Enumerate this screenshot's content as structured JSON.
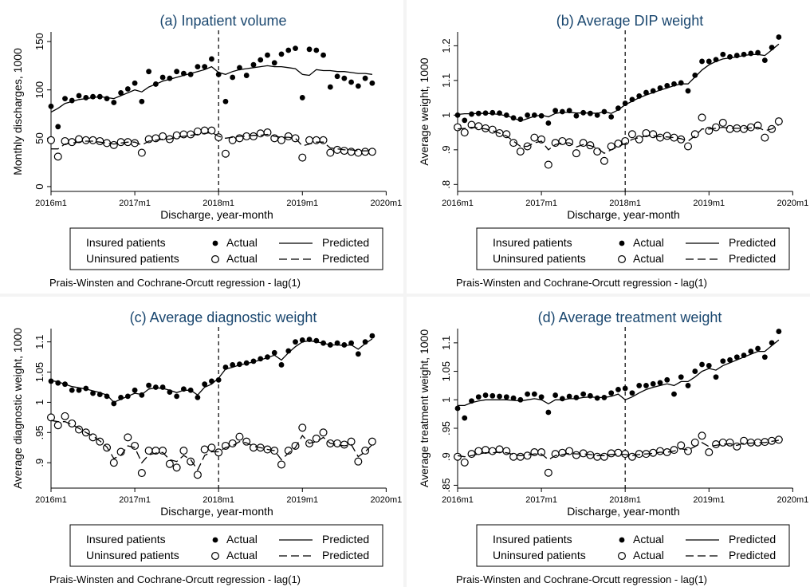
{
  "colors": {
    "background": "#ffffff",
    "panel_title": "#1a476f",
    "marks": "#000000",
    "panel_border": "#cfcfcf"
  },
  "legend": {
    "row1_label": "Insured patients",
    "row2_label": "Uninsured patients",
    "actual_label": "Actual",
    "predicted_label": "Predicted"
  },
  "note": "Prais-Winsten and Cochrane-Orcutt regression - lag(1)",
  "chart_data": [
    {
      "type": "scatter",
      "title": "(a) Inpatient volume",
      "xlabel": "Discharge, year-month",
      "ylabel": "Monthly discharges, 1000",
      "ylim": [
        -5,
        160
      ],
      "yticks": [
        0,
        50,
        100,
        150
      ],
      "ytick_labels": [
        "0",
        "50",
        "100",
        "150"
      ],
      "xlim": [
        0,
        47.5
      ],
      "xticks": [
        0,
        12,
        24,
        36,
        48
      ],
      "xtick_labels": [
        "2016m1",
        "2017m1",
        "2018m1",
        "2019m1",
        "2020m1"
      ],
      "policy_line_x": 24,
      "series": [
        {
          "name": "Insured patients Actual",
          "kind": "filled",
          "values": [
            83,
            62,
            91,
            89,
            94,
            92,
            93,
            93,
            91,
            87,
            97,
            101,
            107,
            88,
            119,
            106,
            113,
            112,
            119,
            117,
            116,
            124,
            124,
            132,
            116,
            88,
            113,
            123,
            115,
            126,
            131,
            136,
            128,
            137,
            141,
            143,
            92,
            142,
            141,
            136,
            103,
            114,
            112,
            108,
            104,
            112,
            107
          ]
        },
        {
          "name": "Insured patients Predicted",
          "kind": "solid",
          "values": [
            77,
            81,
            86,
            88,
            90,
            91,
            92,
            93,
            92,
            91,
            94,
            97,
            100,
            98,
            103,
            106,
            109,
            111,
            113,
            115,
            117,
            119,
            121,
            124,
            118,
            116,
            119,
            121,
            122,
            123,
            124,
            125,
            124,
            124,
            123,
            122,
            116,
            115,
            121,
            120,
            120,
            119,
            119,
            118,
            117,
            117,
            116
          ]
        },
        {
          "name": "Uninsured patients Actual",
          "kind": "hollow",
          "values": [
            48,
            31,
            47,
            46,
            49,
            48,
            48,
            47,
            45,
            43,
            46,
            46,
            45,
            35,
            49,
            50,
            52,
            49,
            53,
            54,
            54,
            57,
            58,
            58,
            51,
            34,
            48,
            50,
            52,
            52,
            55,
            56,
            50,
            48,
            52,
            50,
            30,
            48,
            48,
            48,
            35,
            38,
            37,
            36,
            35,
            36,
            36
          ]
        },
        {
          "name": "Uninsured patients Predicted",
          "kind": "dashed",
          "values": [
            39,
            39,
            44,
            45,
            46,
            47,
            47,
            46,
            45,
            44,
            45,
            46,
            46,
            43,
            47,
            48,
            49,
            49,
            51,
            52,
            53,
            54,
            55,
            56,
            52,
            50,
            51,
            52,
            52,
            53,
            53,
            54,
            52,
            51,
            51,
            50,
            42,
            44,
            46,
            46,
            40,
            39,
            38,
            38,
            37,
            37,
            37
          ]
        }
      ]
    },
    {
      "type": "scatter",
      "title": "(b) Average DIP weight",
      "xlabel": "Discharge, year-month",
      "ylabel": "Average weight, 1000",
      "ylim": [
        0.78,
        1.24
      ],
      "yticks": [
        0.8,
        0.9,
        1.0,
        1.1,
        1.2
      ],
      "ytick_labels": [
        ".8",
        ".9",
        "1",
        "1.1",
        "1.2"
      ],
      "xlim": [
        0,
        47.5
      ],
      "xticks": [
        0,
        12,
        24,
        36,
        48
      ],
      "xtick_labels": [
        "2016m1",
        "2017m1",
        "2018m1",
        "2019m1",
        "2020m1"
      ],
      "policy_line_x": 24,
      "series": [
        {
          "name": "Insured patients Actual",
          "kind": "filled",
          "values": [
            1.0,
            0.985,
            1.003,
            1.005,
            1.006,
            1.007,
            1.006,
            1.0,
            0.992,
            0.988,
            1.0,
            1.0,
            0.998,
            0.977,
            1.013,
            1.01,
            1.013,
            0.998,
            1.007,
            1.005,
            1.0,
            1.01,
            0.995,
            1.02,
            1.034,
            1.045,
            1.055,
            1.065,
            1.07,
            1.078,
            1.085,
            1.09,
            1.093,
            1.07,
            1.115,
            1.155,
            1.155,
            1.16,
            1.175,
            1.168,
            1.172,
            1.175,
            1.178,
            1.18,
            1.158,
            1.195,
            1.225
          ]
        },
        {
          "name": "Insured patients Predicted",
          "kind": "solid",
          "values": [
            1.002,
            1.004,
            1.004,
            1.005,
            1.005,
            1.004,
            1.002,
            0.998,
            0.992,
            0.983,
            0.99,
            0.997,
            1.0,
            0.995,
            1.005,
            1.008,
            1.008,
            1.006,
            1.006,
            1.006,
            1.005,
            1.01,
            1.005,
            1.015,
            1.03,
            1.04,
            1.05,
            1.058,
            1.065,
            1.072,
            1.078,
            1.085,
            1.09,
            1.09,
            1.11,
            1.13,
            1.145,
            1.155,
            1.162,
            1.165,
            1.168,
            1.172,
            1.175,
            1.175,
            1.172,
            1.188,
            1.205
          ]
        },
        {
          "name": "Uninsured patients Actual",
          "kind": "hollow",
          "values": [
            0.965,
            0.95,
            0.972,
            0.968,
            0.962,
            0.958,
            0.948,
            0.945,
            0.92,
            0.895,
            0.91,
            0.935,
            0.93,
            0.857,
            0.92,
            0.925,
            0.922,
            0.89,
            0.92,
            0.913,
            0.895,
            0.868,
            0.91,
            0.918,
            0.925,
            0.945,
            0.93,
            0.948,
            0.945,
            0.935,
            0.94,
            0.935,
            0.93,
            0.91,
            0.945,
            0.993,
            0.955,
            0.965,
            0.978,
            0.96,
            0.962,
            0.96,
            0.965,
            0.97,
            0.935,
            0.96,
            0.982
          ]
        },
        {
          "name": "Uninsured patients Predicted",
          "kind": "dashed",
          "values": [
            0.96,
            0.962,
            0.965,
            0.963,
            0.96,
            0.955,
            0.948,
            0.94,
            0.925,
            0.91,
            0.91,
            0.92,
            0.925,
            0.9,
            0.915,
            0.92,
            0.92,
            0.908,
            0.915,
            0.912,
            0.905,
            0.89,
            0.9,
            0.91,
            0.918,
            0.93,
            0.935,
            0.94,
            0.94,
            0.938,
            0.937,
            0.935,
            0.932,
            0.925,
            0.94,
            0.96,
            0.96,
            0.962,
            0.965,
            0.962,
            0.962,
            0.962,
            0.963,
            0.965,
            0.955,
            0.96,
            0.972
          ]
        }
      ]
    },
    {
      "type": "scatter",
      "title": "(c) Average diagnostic weight",
      "xlabel": "Discharge, year-month",
      "ylabel": "Average diagnostic weight, 1000",
      "ylim": [
        0.858,
        1.122
      ],
      "yticks": [
        0.9,
        0.95,
        1.0,
        1.05,
        1.1
      ],
      "ytick_labels": [
        ".9",
        ".95",
        "1",
        "1.05",
        "1.1"
      ],
      "xlim": [
        0,
        47.5
      ],
      "xticks": [
        0,
        12,
        24,
        36,
        48
      ],
      "xtick_labels": [
        "2016m1",
        "2017m1",
        "2018m1",
        "2019m1",
        "2020m1"
      ],
      "policy_line_x": 24,
      "series": [
        {
          "name": "Insured patients Actual",
          "kind": "filled",
          "values": [
            1.035,
            1.032,
            1.03,
            1.02,
            1.02,
            1.023,
            1.015,
            1.013,
            1.01,
            0.998,
            1.008,
            1.01,
            1.02,
            1.012,
            1.028,
            1.025,
            1.025,
            1.017,
            1.01,
            1.022,
            1.02,
            1.008,
            1.03,
            1.035,
            1.037,
            1.058,
            1.062,
            1.063,
            1.065,
            1.068,
            1.072,
            1.075,
            1.082,
            1.062,
            1.085,
            1.1,
            1.103,
            1.104,
            1.102,
            1.098,
            1.095,
            1.098,
            1.095,
            1.098,
            1.08,
            1.1,
            1.11
          ]
        },
        {
          "name": "Insured patients Predicted",
          "kind": "solid",
          "values": [
            1.036,
            1.034,
            1.03,
            1.026,
            1.024,
            1.022,
            1.019,
            1.016,
            1.012,
            1.0,
            1.005,
            1.01,
            1.015,
            1.013,
            1.022,
            1.024,
            1.023,
            1.02,
            1.016,
            1.02,
            1.02,
            1.012,
            1.025,
            1.03,
            1.04,
            1.055,
            1.058,
            1.062,
            1.064,
            1.067,
            1.07,
            1.074,
            1.078,
            1.07,
            1.082,
            1.092,
            1.1,
            1.102,
            1.1,
            1.098,
            1.095,
            1.095,
            1.094,
            1.095,
            1.088,
            1.097,
            1.105
          ]
        },
        {
          "name": "Uninsured patients Actual",
          "kind": "hollow",
          "values": [
            0.975,
            0.962,
            0.977,
            0.965,
            0.955,
            0.95,
            0.942,
            0.935,
            0.925,
            0.9,
            0.918,
            0.942,
            0.928,
            0.883,
            0.92,
            0.92,
            0.92,
            0.898,
            0.892,
            0.92,
            0.902,
            0.88,
            0.922,
            0.925,
            0.917,
            0.928,
            0.932,
            0.943,
            0.935,
            0.925,
            0.925,
            0.922,
            0.92,
            0.897,
            0.92,
            0.928,
            0.958,
            0.932,
            0.94,
            0.95,
            0.932,
            0.932,
            0.93,
            0.935,
            0.902,
            0.92,
            0.935
          ]
        },
        {
          "name": "Uninsured patients Predicted",
          "kind": "dashed",
          "values": [
            0.97,
            0.968,
            0.968,
            0.963,
            0.957,
            0.95,
            0.944,
            0.936,
            0.926,
            0.907,
            0.912,
            0.928,
            0.925,
            0.9,
            0.913,
            0.916,
            0.917,
            0.905,
            0.902,
            0.912,
            0.905,
            0.888,
            0.912,
            0.918,
            0.918,
            0.925,
            0.928,
            0.935,
            0.933,
            0.927,
            0.925,
            0.922,
            0.92,
            0.905,
            0.916,
            0.925,
            0.945,
            0.932,
            0.935,
            0.942,
            0.932,
            0.93,
            0.928,
            0.93,
            0.91,
            0.918,
            0.93
          ]
        }
      ]
    },
    {
      "type": "scatter",
      "title": "(d) Average treatment weight",
      "xlabel": "Discharge, year-month",
      "ylabel": "Average treatment weight, 1000",
      "ylim": [
        0.845,
        1.125
      ],
      "yticks": [
        0.85,
        0.9,
        0.95,
        1.0,
        1.05,
        1.1
      ],
      "ytick_labels": [
        ".85",
        ".9",
        ".95",
        "1",
        "1.05",
        "1.1"
      ],
      "xlim": [
        0,
        47.5
      ],
      "xticks": [
        0,
        12,
        24,
        36,
        48
      ],
      "xtick_labels": [
        "2016m1",
        "2017m1",
        "2018m1",
        "2019m1",
        "2020m1"
      ],
      "policy_line_x": 24,
      "series": [
        {
          "name": "Insured patients Actual",
          "kind": "filled",
          "values": [
            0.985,
            0.968,
            0.998,
            1.005,
            1.008,
            1.007,
            1.006,
            1.005,
            1.003,
            1.0,
            1.01,
            1.01,
            1.005,
            0.978,
            1.008,
            1.002,
            1.006,
            1.004,
            1.01,
            1.007,
            1.003,
            1.004,
            1.012,
            1.018,
            1.02,
            1.012,
            1.025,
            1.025,
            1.028,
            1.03,
            1.035,
            1.01,
            1.04,
            1.025,
            1.05,
            1.062,
            1.06,
            1.04,
            1.068,
            1.07,
            1.075,
            1.078,
            1.085,
            1.09,
            1.075,
            1.1,
            1.12
          ]
        },
        {
          "name": "Insured patients Predicted",
          "kind": "solid",
          "values": [
            0.99,
            0.99,
            0.995,
            0.998,
            1.0,
            1.0,
            1.0,
            1.0,
            0.999,
            0.998,
            1.0,
            1.002,
            1.0,
            0.993,
            1.0,
            1.0,
            1.002,
            1.002,
            1.004,
            1.005,
            1.004,
            1.004,
            1.006,
            1.01,
            1.0,
            1.005,
            1.012,
            1.018,
            1.022,
            1.025,
            1.028,
            1.025,
            1.032,
            1.032,
            1.04,
            1.05,
            1.055,
            1.052,
            1.06,
            1.065,
            1.07,
            1.075,
            1.08,
            1.085,
            1.085,
            1.095,
            1.105
          ]
        },
        {
          "name": "Uninsured patients Actual",
          "kind": "hollow",
          "values": [
            0.9,
            0.89,
            0.905,
            0.91,
            0.912,
            0.91,
            0.913,
            0.91,
            0.9,
            0.9,
            0.902,
            0.908,
            0.908,
            0.872,
            0.905,
            0.907,
            0.91,
            0.903,
            0.906,
            0.903,
            0.9,
            0.9,
            0.906,
            0.907,
            0.905,
            0.9,
            0.905,
            0.905,
            0.907,
            0.91,
            0.908,
            0.912,
            0.92,
            0.91,
            0.925,
            0.937,
            0.908,
            0.922,
            0.925,
            0.925,
            0.918,
            0.928,
            0.925,
            0.925,
            0.926,
            0.928,
            0.93
          ]
        },
        {
          "name": "Uninsured patients Predicted",
          "kind": "dashed",
          "values": [
            0.902,
            0.9,
            0.902,
            0.905,
            0.907,
            0.907,
            0.908,
            0.907,
            0.904,
            0.902,
            0.903,
            0.905,
            0.905,
            0.895,
            0.902,
            0.904,
            0.906,
            0.905,
            0.905,
            0.904,
            0.902,
            0.902,
            0.904,
            0.905,
            0.904,
            0.902,
            0.904,
            0.905,
            0.906,
            0.908,
            0.908,
            0.91,
            0.914,
            0.912,
            0.918,
            0.925,
            0.918,
            0.92,
            0.922,
            0.923,
            0.92,
            0.924,
            0.924,
            0.925,
            0.925,
            0.927,
            0.929
          ]
        }
      ]
    }
  ]
}
